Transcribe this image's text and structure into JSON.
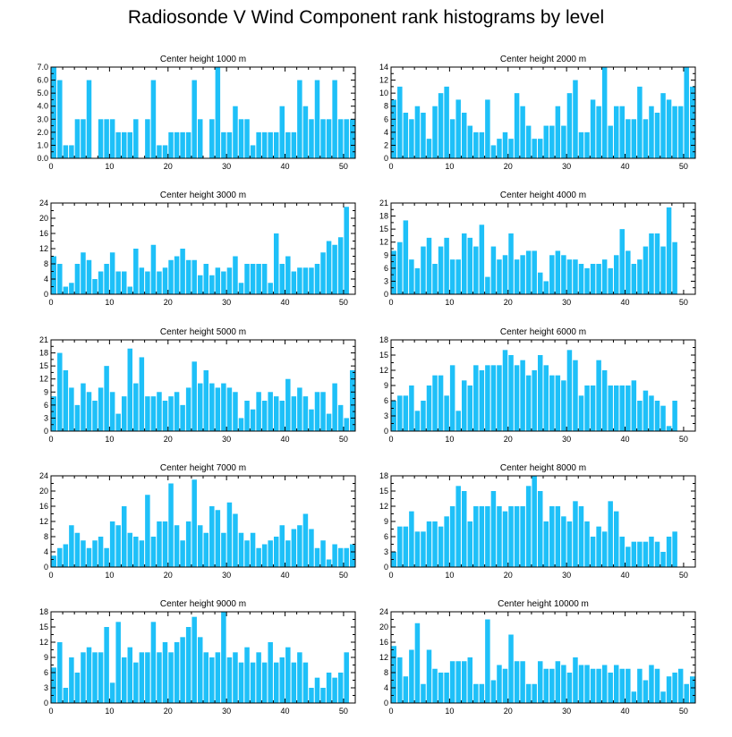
{
  "title": "Radiosonde V Wind Component rank histograms by level",
  "bar_color": "#1ec0f8",
  "chart_data": [
    {
      "type": "bar",
      "title": "Center height 1000 m",
      "xlim": [
        0,
        52
      ],
      "ylim": [
        0,
        7
      ],
      "xticks": [
        0,
        10,
        20,
        30,
        40,
        50
      ],
      "yticks": [
        0,
        1,
        2,
        3,
        4,
        5,
        6,
        7
      ],
      "ytick_labels": [
        "0.0",
        "1.0",
        "2.0",
        "3.0",
        "4.0",
        "5.0",
        "6.0",
        "7.0"
      ],
      "values": [
        7,
        6,
        1,
        1,
        3,
        3,
        6,
        0,
        3,
        3,
        3,
        2,
        2,
        2,
        3,
        0,
        3,
        6,
        1,
        1,
        2,
        2,
        2,
        2,
        6,
        3,
        0,
        3,
        7,
        2,
        2,
        4,
        3,
        3,
        1,
        2,
        2,
        2,
        2,
        4,
        2,
        2,
        6,
        4,
        3,
        6,
        3,
        3,
        6,
        3,
        3,
        3
      ]
    },
    {
      "type": "bar",
      "title": "Center height 2000 m",
      "xlim": [
        0,
        52
      ],
      "ylim": [
        0,
        14
      ],
      "xticks": [
        0,
        10,
        20,
        30,
        40,
        50
      ],
      "yticks": [
        0,
        2,
        4,
        6,
        8,
        10,
        12,
        14
      ],
      "ytick_labels": [
        "0",
        "2",
        "4",
        "6",
        "8",
        "10",
        "12",
        "14"
      ],
      "values": [
        9,
        11,
        7,
        6,
        8,
        7,
        3,
        8,
        10,
        11,
        6,
        9,
        7,
        5,
        4,
        4,
        9,
        2,
        3,
        4,
        3,
        10,
        8,
        5,
        3,
        3,
        5,
        5,
        8,
        5,
        10,
        12,
        4,
        4,
        9,
        8,
        14,
        5,
        8,
        8,
        6,
        6,
        11,
        6,
        8,
        7,
        10,
        9,
        8,
        8,
        14,
        11
      ]
    },
    {
      "type": "bar",
      "title": "Center height 3000 m",
      "xlim": [
        0,
        52
      ],
      "ylim": [
        0,
        24
      ],
      "xticks": [
        0,
        10,
        20,
        30,
        40,
        50
      ],
      "yticks": [
        0,
        4,
        8,
        12,
        16,
        20,
        24
      ],
      "ytick_labels": [
        "0",
        "4",
        "8",
        "12",
        "16",
        "20",
        "24"
      ],
      "values": [
        10,
        8,
        2,
        3,
        8,
        11,
        9,
        4,
        6,
        8,
        11,
        6,
        6,
        2,
        12,
        7,
        6,
        13,
        6,
        7,
        9,
        10,
        12,
        9,
        9,
        5,
        8,
        5,
        7,
        6,
        7,
        10,
        3,
        8,
        8,
        8,
        8,
        3,
        16,
        8,
        10,
        6,
        7,
        7,
        7,
        8,
        11,
        14,
        13,
        15,
        23,
        0
      ]
    },
    {
      "type": "bar",
      "title": "Center height 4000 m",
      "xlim": [
        0,
        52
      ],
      "ylim": [
        0,
        21
      ],
      "xticks": [
        0,
        10,
        20,
        30,
        40,
        50
      ],
      "yticks": [
        0,
        3,
        6,
        9,
        12,
        15,
        18,
        21
      ],
      "ytick_labels": [
        "0",
        "3",
        "6",
        "9",
        "12",
        "15",
        "18",
        "21"
      ],
      "values": [
        10,
        12,
        17,
        8,
        6,
        11,
        13,
        7,
        11,
        13,
        8,
        8,
        14,
        13,
        11,
        16,
        4,
        11,
        8,
        9,
        14,
        8,
        9,
        10,
        10,
        5,
        3,
        9,
        10,
        9,
        8,
        8,
        7,
        6,
        7,
        7,
        8,
        6,
        9,
        15,
        10,
        7,
        8,
        11,
        14,
        14,
        11,
        20,
        12,
        0,
        0,
        0
      ]
    },
    {
      "type": "bar",
      "title": "Center height 5000 m",
      "xlim": [
        0,
        52
      ],
      "ylim": [
        0,
        21
      ],
      "xticks": [
        0,
        10,
        20,
        30,
        40,
        50
      ],
      "yticks": [
        0,
        3,
        6,
        9,
        12,
        15,
        18,
        21
      ],
      "ytick_labels": [
        "0",
        "3",
        "6",
        "9",
        "12",
        "15",
        "18",
        "21"
      ],
      "values": [
        8,
        18,
        14,
        10,
        6,
        11,
        9,
        7,
        10,
        15,
        9,
        4,
        8,
        19,
        11,
        17,
        8,
        8,
        9,
        7,
        8,
        9,
        6,
        10,
        16,
        11,
        14,
        11,
        10,
        11,
        10,
        9,
        3,
        7,
        5,
        9,
        7,
        9,
        8,
        7,
        12,
        8,
        10,
        8,
        5,
        9,
        9,
        4,
        11,
        6,
        3,
        14
      ]
    },
    {
      "type": "bar",
      "title": "Center height 6000 m",
      "xlim": [
        0,
        52
      ],
      "ylim": [
        0,
        18
      ],
      "xticks": [
        0,
        10,
        20,
        30,
        40,
        50
      ],
      "yticks": [
        0,
        3,
        6,
        9,
        12,
        15,
        18
      ],
      "ytick_labels": [
        "0",
        "3",
        "6",
        "9",
        "12",
        "15",
        "18"
      ],
      "values": [
        6,
        7,
        7,
        9,
        4,
        6,
        9,
        11,
        11,
        7,
        13,
        4,
        10,
        9,
        13,
        12,
        13,
        13,
        13,
        16,
        15,
        13,
        14,
        11,
        12,
        15,
        13,
        11,
        11,
        10,
        16,
        14,
        7,
        9,
        9,
        14,
        12,
        9,
        9,
        9,
        9,
        10,
        6,
        8,
        7,
        6,
        5,
        1,
        6,
        0,
        0,
        0
      ]
    },
    {
      "type": "bar",
      "title": "Center height 7000 m",
      "xlim": [
        0,
        52
      ],
      "ylim": [
        0,
        24
      ],
      "xticks": [
        0,
        10,
        20,
        30,
        40,
        50
      ],
      "yticks": [
        0,
        4,
        8,
        12,
        16,
        20,
        24
      ],
      "ytick_labels": [
        "0",
        "4",
        "8",
        "12",
        "16",
        "20",
        "24"
      ],
      "values": [
        3,
        5,
        6,
        11,
        9,
        7,
        5,
        7,
        8,
        5,
        12,
        11,
        16,
        9,
        8,
        7,
        19,
        8,
        12,
        12,
        22,
        11,
        7,
        12,
        23,
        11,
        9,
        16,
        15,
        9,
        17,
        14,
        9,
        7,
        9,
        5,
        6,
        7,
        8,
        11,
        7,
        10,
        11,
        14,
        10,
        5,
        7,
        2,
        6,
        5,
        5,
        6
      ]
    },
    {
      "type": "bar",
      "title": "Center height 8000 m",
      "xlim": [
        0,
        52
      ],
      "ylim": [
        0,
        18
      ],
      "xticks": [
        0,
        10,
        20,
        30,
        40,
        50
      ],
      "yticks": [
        0,
        3,
        6,
        9,
        12,
        15,
        18
      ],
      "ytick_labels": [
        "0",
        "3",
        "6",
        "9",
        "12",
        "15",
        "18"
      ],
      "values": [
        3,
        8,
        8,
        11,
        7,
        7,
        9,
        9,
        8,
        10,
        12,
        16,
        15,
        9,
        12,
        12,
        12,
        15,
        12,
        11,
        12,
        12,
        12,
        16,
        18,
        15,
        9,
        12,
        12,
        10,
        9,
        13,
        12,
        9,
        6,
        8,
        7,
        13,
        11,
        6,
        4,
        5,
        5,
        5,
        6,
        5,
        3,
        6,
        7,
        0,
        0,
        0
      ]
    },
    {
      "type": "bar",
      "title": "Center height 9000 m",
      "xlim": [
        0,
        52
      ],
      "ylim": [
        0,
        18
      ],
      "xticks": [
        0,
        10,
        20,
        30,
        40,
        50
      ],
      "yticks": [
        0,
        3,
        6,
        9,
        12,
        15,
        18
      ],
      "ytick_labels": [
        "0",
        "3",
        "6",
        "9",
        "12",
        "15",
        "18"
      ],
      "values": [
        7,
        12,
        3,
        9,
        6,
        10,
        11,
        10,
        10,
        15,
        4,
        16,
        9,
        11,
        8,
        10,
        10,
        16,
        10,
        12,
        10,
        12,
        13,
        15,
        17,
        13,
        10,
        9,
        10,
        18,
        9,
        10,
        8,
        11,
        8,
        10,
        8,
        12,
        8,
        9,
        11,
        8,
        10,
        8,
        3,
        5,
        3,
        6,
        5,
        6,
        10,
        0
      ]
    },
    {
      "type": "bar",
      "title": "Center height 10000 m",
      "xlim": [
        0,
        52
      ],
      "ylim": [
        0,
        24
      ],
      "xticks": [
        0,
        10,
        20,
        30,
        40,
        50
      ],
      "yticks": [
        0,
        4,
        8,
        12,
        16,
        20,
        24
      ],
      "ytick_labels": [
        "0",
        "4",
        "8",
        "12",
        "16",
        "20",
        "24"
      ],
      "values": [
        15,
        12,
        7,
        14,
        21,
        5,
        14,
        9,
        8,
        8,
        11,
        11,
        11,
        12,
        5,
        5,
        22,
        6,
        10,
        9,
        18,
        11,
        11,
        5,
        5,
        11,
        9,
        9,
        11,
        10,
        8,
        12,
        10,
        10,
        9,
        9,
        10,
        8,
        10,
        9,
        9,
        3,
        9,
        6,
        10,
        9,
        3,
        7,
        8,
        9,
        5,
        7
      ]
    }
  ]
}
